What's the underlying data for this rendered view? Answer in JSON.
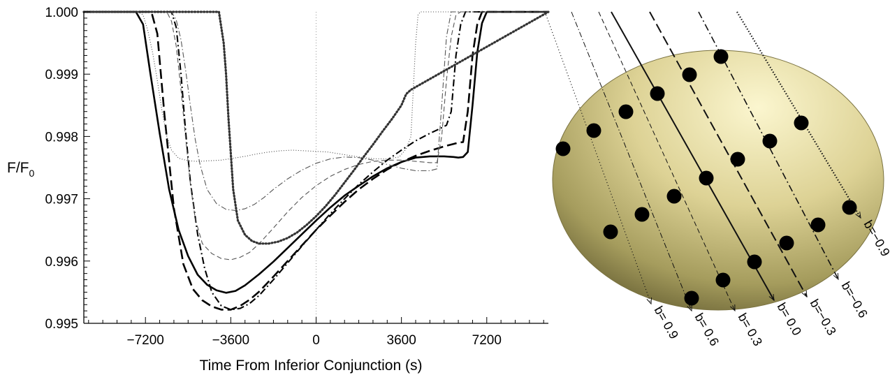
{
  "chart_data": {
    "type": "line",
    "xlabel": "Time From Inferior Conjunction (s)",
    "ylabel": "F/F",
    "ylabel_sub": "0",
    "xlim": [
      -9800,
      9800
    ],
    "ylim": [
      0.995,
      1.0
    ],
    "xticks": [
      -7200,
      -3600,
      0,
      3600,
      7200
    ],
    "xtick_labels": [
      "−7200",
      "−3600",
      "0",
      "3600",
      "7200"
    ],
    "yticks": [
      0.995,
      0.996,
      0.997,
      0.998,
      0.999,
      1.0
    ],
    "ytick_labels": [
      "0.995",
      "0.996",
      "0.997",
      "0.998",
      "0.999",
      "1.000"
    ],
    "reference_line_x": 0,
    "series": [
      {
        "style": "solid",
        "width": 2.6,
        "color": "#000000",
        "x": [
          -7600,
          -7300,
          -7000,
          -6600,
          -6200,
          -5800,
          -5400,
          -5000,
          -4600,
          -4200,
          -3800,
          -3400,
          -3000,
          -2400,
          -1800,
          -1200,
          -600,
          0,
          600,
          1200,
          1800,
          2400,
          3000,
          3600,
          4200,
          4800,
          5400,
          5800,
          6000,
          6200,
          6400,
          6600,
          6800,
          7000,
          7200,
          7600
        ],
        "y": [
          1.0,
          0.9998,
          0.99903,
          0.99805,
          0.99715,
          0.9965,
          0.99608,
          0.99578,
          0.99562,
          0.99553,
          0.99549,
          0.99552,
          0.99561,
          0.99579,
          0.99599,
          0.99621,
          0.99643,
          0.99665,
          0.99686,
          0.99705,
          0.99721,
          0.99736,
          0.99749,
          0.99759,
          0.99766,
          0.99768,
          0.99768,
          0.99767,
          0.99766,
          0.99767,
          0.99775,
          0.9985,
          0.99935,
          0.99982,
          1.0,
          1.0
        ]
      },
      {
        "style": "longdash",
        "width": 2.6,
        "color": "#000000",
        "x": [
          -6950,
          -6700,
          -6400,
          -6000,
          -5600,
          -5200,
          -4800,
          -4400,
          -4000,
          -3600,
          -3200,
          -2800,
          -2400,
          -1800,
          -1200,
          -600,
          0,
          600,
          1200,
          1800,
          2400,
          3000,
          3600,
          4200,
          4800,
          5400,
          5800,
          6000,
          6200,
          6400,
          6600,
          6800,
          7000
        ],
        "y": [
          1.0,
          0.99965,
          0.99835,
          0.99685,
          0.99595,
          0.99555,
          0.99537,
          0.99527,
          0.99522,
          0.99522,
          0.99528,
          0.99538,
          0.99551,
          0.99575,
          0.996,
          0.99625,
          0.9965,
          0.99673,
          0.99695,
          0.99715,
          0.99732,
          0.99747,
          0.99759,
          0.99769,
          0.99777,
          0.99784,
          0.99788,
          0.9979,
          0.99791,
          0.9984,
          0.9993,
          0.9998,
          1.0
        ]
      },
      {
        "style": "dashdot",
        "width": 2.1,
        "color": "#000000",
        "x": [
          -6100,
          -5900,
          -5700,
          -5500,
          -5300,
          -5000,
          -4700,
          -4400,
          -4000,
          -3600,
          -3200,
          -2800,
          -2400,
          -1800,
          -1200,
          -600,
          0,
          600,
          1200,
          1800,
          2400,
          3000,
          3600,
          4200,
          4800,
          5200,
          5500,
          5700,
          5900,
          6100,
          6300,
          6500
        ],
        "y": [
          1.0,
          0.99975,
          0.999,
          0.99805,
          0.99725,
          0.99643,
          0.99588,
          0.9955,
          0.99528,
          0.99522,
          0.99524,
          0.99532,
          0.99545,
          0.9957,
          0.99597,
          0.99624,
          0.9965,
          0.99676,
          0.997,
          0.99723,
          0.99743,
          0.99762,
          0.99778,
          0.99793,
          0.99805,
          0.99812,
          0.99818,
          0.9984,
          0.9993,
          0.9998,
          1.0,
          1.0
        ]
      },
      {
        "style": "shortdash",
        "width": 1.1,
        "color": "#555555",
        "x": [
          -6300,
          -6100,
          -5900,
          -5700,
          -5500,
          -5300,
          -5100,
          -4800,
          -4400,
          -4000,
          -3600,
          -3200,
          -2800,
          -2400,
          -1800,
          -1200,
          -600,
          0,
          600,
          1200,
          1800,
          2400,
          3000,
          3600,
          4200,
          4800,
          5100,
          5300,
          5500,
          5700,
          5900,
          6100
        ],
        "y": [
          1.0,
          0.99985,
          0.99945,
          0.99875,
          0.99795,
          0.99722,
          0.99668,
          0.99628,
          0.99612,
          0.99604,
          0.99602,
          0.99606,
          0.99614,
          0.99628,
          0.99653,
          0.99679,
          0.99702,
          0.99721,
          0.99736,
          0.99747,
          0.99755,
          0.9976,
          0.99762,
          0.99762,
          0.9976,
          0.99758,
          0.99758,
          0.998,
          0.9989,
          0.9996,
          0.99995,
          1.0
        ]
      },
      {
        "style": "dashdot-fine",
        "width": 1.1,
        "color": "#555555",
        "x": [
          -6100,
          -5900,
          -5700,
          -5500,
          -5300,
          -5100,
          -4900,
          -4600,
          -4200,
          -3800,
          -3400,
          -3000,
          -2600,
          -2200,
          -1800,
          -1200,
          -600,
          0,
          600,
          1200,
          1800,
          2400,
          3000,
          3600,
          4200,
          4800,
          5100,
          5300,
          5500,
          5700
        ],
        "y": [
          1.0,
          0.99987,
          0.99955,
          0.99905,
          0.99848,
          0.99795,
          0.99755,
          0.99715,
          0.99692,
          0.99683,
          0.99681,
          0.99684,
          0.99691,
          0.99702,
          0.99715,
          0.99732,
          0.99746,
          0.99757,
          0.99764,
          0.99767,
          0.99766,
          0.99762,
          0.99755,
          0.99749,
          0.99745,
          0.99745,
          0.99748,
          0.9985,
          0.9996,
          1.0
        ]
      },
      {
        "style": "dotted",
        "width": 3.2,
        "color": "#333333",
        "x": [
          -4100,
          -3900,
          -3800,
          -3700,
          -3500,
          -3300,
          -3000,
          -2700,
          -2400,
          -2000,
          -1600,
          -1200,
          -800,
          -400,
          0,
          400,
          800,
          1200,
          1600,
          2000,
          2400,
          2800,
          3200,
          3600,
          3800,
          4000
        ],
        "y": [
          1.0,
          0.9995,
          0.999,
          0.9983,
          0.99715,
          0.99665,
          0.99642,
          0.99632,
          0.99628,
          0.99628,
          0.99631,
          0.99637,
          0.99646,
          0.99658,
          0.99672,
          0.99688,
          0.99706,
          0.99726,
          0.99746,
          0.99767,
          0.99787,
          0.99808,
          0.99828,
          0.9985,
          0.99868,
          0.99875
        ]
      },
      {
        "style": "dotted-fine",
        "width": 1.1,
        "color": "#444444",
        "x": [
          -7500,
          -7300,
          -7100,
          -6900,
          -6700,
          -6500,
          -6300,
          -6100,
          -5800,
          -5400,
          -5000,
          -4500,
          -4000,
          -3500,
          -3000,
          -2500,
          -2000,
          -1500,
          -1000,
          -500,
          0,
          500,
          1000,
          1500,
          2000,
          2500,
          3000,
          3500,
          3800,
          4000,
          4200,
          4300,
          4400,
          4500
        ],
        "y": [
          1.0,
          0.99995,
          0.9997,
          0.99935,
          0.9989,
          0.9984,
          0.998,
          0.99778,
          0.99765,
          0.99761,
          0.9976,
          0.99761,
          0.99762,
          0.99765,
          0.99768,
          0.99772,
          0.99775,
          0.99777,
          0.99778,
          0.99777,
          0.99776,
          0.99775,
          0.99772,
          0.99769,
          0.99766,
          0.99764,
          0.99764,
          0.99767,
          0.9978,
          0.998,
          0.9995,
          0.99995,
          1.0,
          1.0
        ]
      }
    ]
  },
  "inset": {
    "star_color": "#c9c07a",
    "chords": [
      {
        "label": "b= 0.9",
        "style": "dotted"
      },
      {
        "label": "b= 0.6",
        "style": "dashdot-fine"
      },
      {
        "label": "b= 0.3",
        "style": "shortdash"
      },
      {
        "label": "b= 0.0",
        "style": "solid"
      },
      {
        "label": "b=−0.3",
        "style": "longdash"
      },
      {
        "label": "b=−0.6",
        "style": "dashdot"
      },
      {
        "label": "b=−0.9",
        "style": "dotted-thick"
      }
    ]
  }
}
